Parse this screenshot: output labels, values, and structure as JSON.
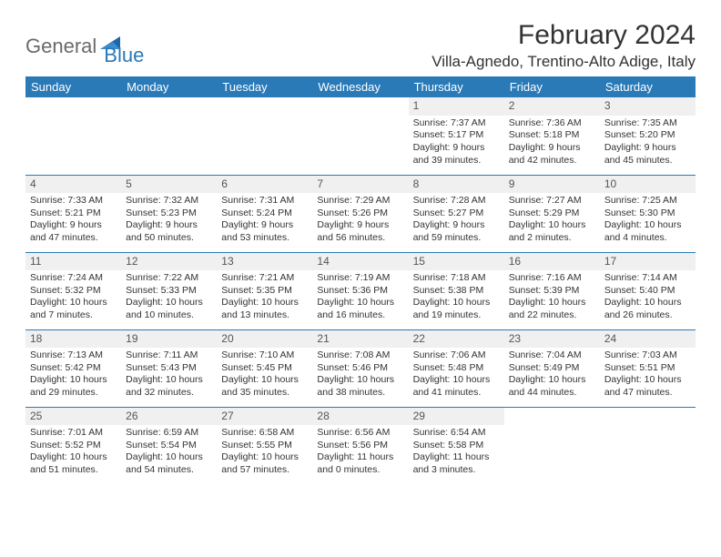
{
  "brand": {
    "part1": "General",
    "part2": "Blue"
  },
  "title": "February 2024",
  "location": "Villa-Agnedo, Trentino-Alto Adige, Italy",
  "colors": {
    "header_bg": "#2a7ab8",
    "header_text": "#ffffff",
    "body_text": "#333333",
    "daynum_bg": "#f0f0f0",
    "divider": "#2a7ab8",
    "logo_gray": "#6a6a6a",
    "logo_blue": "#2a78b8"
  },
  "typography": {
    "title_fontsize": 30,
    "location_fontsize": 17,
    "header_fontsize": 13,
    "cell_fontsize": 10.5,
    "daynum_fontsize": 12
  },
  "weekdays": [
    "Sunday",
    "Monday",
    "Tuesday",
    "Wednesday",
    "Thursday",
    "Friday",
    "Saturday"
  ],
  "weeks": [
    [
      {
        "empty": true
      },
      {
        "empty": true
      },
      {
        "empty": true
      },
      {
        "empty": true
      },
      {
        "day": "1",
        "sunrise": "Sunrise: 7:37 AM",
        "sunset": "Sunset: 5:17 PM",
        "daylight1": "Daylight: 9 hours",
        "daylight2": "and 39 minutes."
      },
      {
        "day": "2",
        "sunrise": "Sunrise: 7:36 AM",
        "sunset": "Sunset: 5:18 PM",
        "daylight1": "Daylight: 9 hours",
        "daylight2": "and 42 minutes."
      },
      {
        "day": "3",
        "sunrise": "Sunrise: 7:35 AM",
        "sunset": "Sunset: 5:20 PM",
        "daylight1": "Daylight: 9 hours",
        "daylight2": "and 45 minutes."
      }
    ],
    [
      {
        "day": "4",
        "sunrise": "Sunrise: 7:33 AM",
        "sunset": "Sunset: 5:21 PM",
        "daylight1": "Daylight: 9 hours",
        "daylight2": "and 47 minutes."
      },
      {
        "day": "5",
        "sunrise": "Sunrise: 7:32 AM",
        "sunset": "Sunset: 5:23 PM",
        "daylight1": "Daylight: 9 hours",
        "daylight2": "and 50 minutes."
      },
      {
        "day": "6",
        "sunrise": "Sunrise: 7:31 AM",
        "sunset": "Sunset: 5:24 PM",
        "daylight1": "Daylight: 9 hours",
        "daylight2": "and 53 minutes."
      },
      {
        "day": "7",
        "sunrise": "Sunrise: 7:29 AM",
        "sunset": "Sunset: 5:26 PM",
        "daylight1": "Daylight: 9 hours",
        "daylight2": "and 56 minutes."
      },
      {
        "day": "8",
        "sunrise": "Sunrise: 7:28 AM",
        "sunset": "Sunset: 5:27 PM",
        "daylight1": "Daylight: 9 hours",
        "daylight2": "and 59 minutes."
      },
      {
        "day": "9",
        "sunrise": "Sunrise: 7:27 AM",
        "sunset": "Sunset: 5:29 PM",
        "daylight1": "Daylight: 10 hours",
        "daylight2": "and 2 minutes."
      },
      {
        "day": "10",
        "sunrise": "Sunrise: 7:25 AM",
        "sunset": "Sunset: 5:30 PM",
        "daylight1": "Daylight: 10 hours",
        "daylight2": "and 4 minutes."
      }
    ],
    [
      {
        "day": "11",
        "sunrise": "Sunrise: 7:24 AM",
        "sunset": "Sunset: 5:32 PM",
        "daylight1": "Daylight: 10 hours",
        "daylight2": "and 7 minutes."
      },
      {
        "day": "12",
        "sunrise": "Sunrise: 7:22 AM",
        "sunset": "Sunset: 5:33 PM",
        "daylight1": "Daylight: 10 hours",
        "daylight2": "and 10 minutes."
      },
      {
        "day": "13",
        "sunrise": "Sunrise: 7:21 AM",
        "sunset": "Sunset: 5:35 PM",
        "daylight1": "Daylight: 10 hours",
        "daylight2": "and 13 minutes."
      },
      {
        "day": "14",
        "sunrise": "Sunrise: 7:19 AM",
        "sunset": "Sunset: 5:36 PM",
        "daylight1": "Daylight: 10 hours",
        "daylight2": "and 16 minutes."
      },
      {
        "day": "15",
        "sunrise": "Sunrise: 7:18 AM",
        "sunset": "Sunset: 5:38 PM",
        "daylight1": "Daylight: 10 hours",
        "daylight2": "and 19 minutes."
      },
      {
        "day": "16",
        "sunrise": "Sunrise: 7:16 AM",
        "sunset": "Sunset: 5:39 PM",
        "daylight1": "Daylight: 10 hours",
        "daylight2": "and 22 minutes."
      },
      {
        "day": "17",
        "sunrise": "Sunrise: 7:14 AM",
        "sunset": "Sunset: 5:40 PM",
        "daylight1": "Daylight: 10 hours",
        "daylight2": "and 26 minutes."
      }
    ],
    [
      {
        "day": "18",
        "sunrise": "Sunrise: 7:13 AM",
        "sunset": "Sunset: 5:42 PM",
        "daylight1": "Daylight: 10 hours",
        "daylight2": "and 29 minutes."
      },
      {
        "day": "19",
        "sunrise": "Sunrise: 7:11 AM",
        "sunset": "Sunset: 5:43 PM",
        "daylight1": "Daylight: 10 hours",
        "daylight2": "and 32 minutes."
      },
      {
        "day": "20",
        "sunrise": "Sunrise: 7:10 AM",
        "sunset": "Sunset: 5:45 PM",
        "daylight1": "Daylight: 10 hours",
        "daylight2": "and 35 minutes."
      },
      {
        "day": "21",
        "sunrise": "Sunrise: 7:08 AM",
        "sunset": "Sunset: 5:46 PM",
        "daylight1": "Daylight: 10 hours",
        "daylight2": "and 38 minutes."
      },
      {
        "day": "22",
        "sunrise": "Sunrise: 7:06 AM",
        "sunset": "Sunset: 5:48 PM",
        "daylight1": "Daylight: 10 hours",
        "daylight2": "and 41 minutes."
      },
      {
        "day": "23",
        "sunrise": "Sunrise: 7:04 AM",
        "sunset": "Sunset: 5:49 PM",
        "daylight1": "Daylight: 10 hours",
        "daylight2": "and 44 minutes."
      },
      {
        "day": "24",
        "sunrise": "Sunrise: 7:03 AM",
        "sunset": "Sunset: 5:51 PM",
        "daylight1": "Daylight: 10 hours",
        "daylight2": "and 47 minutes."
      }
    ],
    [
      {
        "day": "25",
        "sunrise": "Sunrise: 7:01 AM",
        "sunset": "Sunset: 5:52 PM",
        "daylight1": "Daylight: 10 hours",
        "daylight2": "and 51 minutes."
      },
      {
        "day": "26",
        "sunrise": "Sunrise: 6:59 AM",
        "sunset": "Sunset: 5:54 PM",
        "daylight1": "Daylight: 10 hours",
        "daylight2": "and 54 minutes."
      },
      {
        "day": "27",
        "sunrise": "Sunrise: 6:58 AM",
        "sunset": "Sunset: 5:55 PM",
        "daylight1": "Daylight: 10 hours",
        "daylight2": "and 57 minutes."
      },
      {
        "day": "28",
        "sunrise": "Sunrise: 6:56 AM",
        "sunset": "Sunset: 5:56 PM",
        "daylight1": "Daylight: 11 hours",
        "daylight2": "and 0 minutes."
      },
      {
        "day": "29",
        "sunrise": "Sunrise: 6:54 AM",
        "sunset": "Sunset: 5:58 PM",
        "daylight1": "Daylight: 11 hours",
        "daylight2": "and 3 minutes."
      },
      {
        "empty": true
      },
      {
        "empty": true
      }
    ]
  ]
}
